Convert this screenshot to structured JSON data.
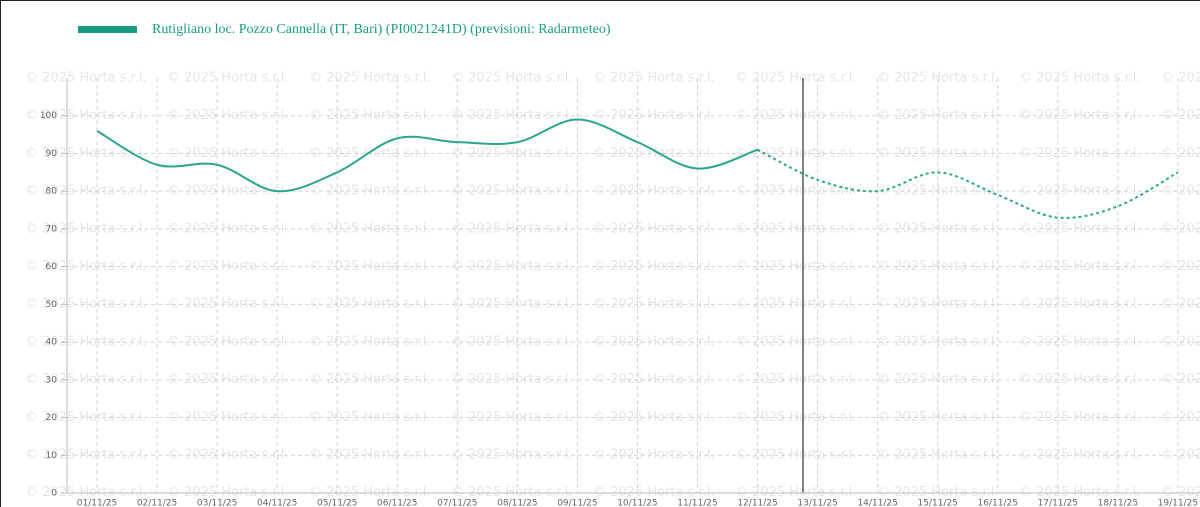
{
  "chart_data": {
    "type": "line",
    "watermark": "© 2025 Horta s.r.l.",
    "categories": [
      "01/11/25",
      "02/11/25",
      "03/11/25",
      "04/11/25",
      "05/11/25",
      "06/11/25",
      "07/11/25",
      "08/11/25",
      "09/11/25",
      "10/11/25",
      "11/11/25",
      "12/11/25",
      "13/11/25",
      "14/11/25",
      "15/11/25",
      "16/11/25",
      "17/11/25",
      "18/11/25",
      "19/11/25"
    ],
    "series": [
      {
        "name": "Rutigliano loc. Pozzo Cannella (IT, Bari) (PI0021241D) (previsioni: Radarmeteo)",
        "color": "#2ca58d",
        "dashed": false,
        "values": [
          96,
          87,
          87,
          80,
          85,
          94,
          93,
          93,
          99,
          93,
          86,
          91,
          null,
          null,
          null,
          null,
          null,
          null,
          null
        ]
      },
      {
        "color": "#2ca58d",
        "dashed": true,
        "values": [
          null,
          null,
          null,
          null,
          null,
          null,
          null,
          null,
          null,
          null,
          null,
          91,
          83,
          80,
          85,
          79,
          73,
          76,
          85
        ]
      }
    ],
    "ylim": [
      0,
      110
    ],
    "yticks": [
      0,
      10,
      20,
      30,
      40,
      50,
      60,
      70,
      80,
      90,
      100
    ],
    "grid": true
  }
}
